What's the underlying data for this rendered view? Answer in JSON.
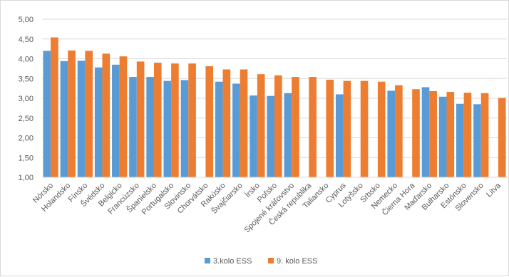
{
  "chart_data": {
    "type": "bar",
    "categories": [
      "Nórsko",
      "Holandsko",
      "Fínsko",
      "Švédsko",
      "Belgicko",
      "Francúzsko",
      "Španielsko",
      "Portugalsko",
      "Slovinsko",
      "Chorvátsko",
      "Rakúsko",
      "Švajčiarsko",
      "Írsko",
      "Poľsko",
      "Spojené kráľovstvo",
      "Česká republika",
      "Taliansko",
      "Cyprus",
      "Lotyšsko",
      "Srbsko",
      "Nemecko",
      "Čierna Hora",
      "Maďarsko",
      "Bulharsko",
      "Estónsko",
      "Slovensko",
      "Litva"
    ],
    "series": [
      {
        "name": "3.kolo ESS",
        "color": "#5b9bd5",
        "values": [
          4.2,
          3.94,
          3.95,
          3.78,
          3.85,
          3.54,
          3.54,
          3.44,
          3.46,
          null,
          3.42,
          3.37,
          3.07,
          3.06,
          3.13,
          null,
          null,
          3.1,
          null,
          null,
          3.19,
          null,
          3.28,
          3.04,
          2.86,
          2.85,
          null
        ]
      },
      {
        "name": "9. kolo ESS",
        "color": "#ed7d31",
        "values": [
          4.54,
          4.21,
          4.2,
          4.13,
          4.06,
          3.93,
          3.9,
          3.88,
          3.88,
          3.81,
          3.73,
          3.73,
          3.61,
          3.58,
          3.54,
          3.54,
          3.47,
          3.44,
          3.44,
          3.42,
          3.33,
          3.23,
          3.18,
          3.16,
          3.14,
          3.13,
          3.01
        ]
      }
    ],
    "yticks": [
      "1,00",
      "1,50",
      "2,00",
      "2,50",
      "3,00",
      "3,50",
      "4,00",
      "4,50",
      "5,00"
    ],
    "ylim": [
      1,
      5
    ],
    "grid": true,
    "legend": "bottom"
  }
}
